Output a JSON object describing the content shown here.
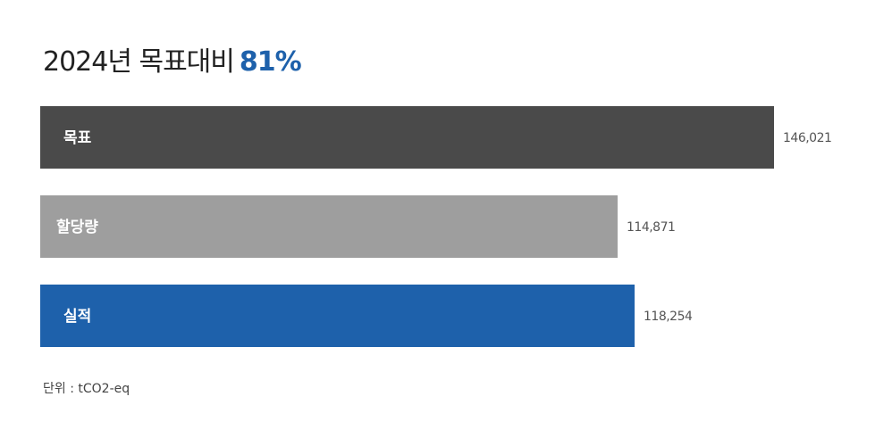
{
  "title": {
    "prefix": "2024년 목표대비",
    "highlight": "81%",
    "highlight_color": "#1e61ab"
  },
  "unit_label": "단위 : tCO2-eq",
  "chart_data": {
    "type": "bar",
    "orientation": "horizontal",
    "title": "2024년 목표대비 81%",
    "categories": [
      "목표",
      "할당량",
      "실적"
    ],
    "values": [
      146021,
      114871,
      118254
    ],
    "value_labels": [
      "146,021",
      "114,871",
      "118,254"
    ],
    "colors": [
      "#4a4a4a",
      "#9e9e9e",
      "#1e61ab"
    ],
    "unit": "tCO2-eq",
    "xlim": [
      0,
      146021
    ],
    "grid": false,
    "legend": "none"
  }
}
